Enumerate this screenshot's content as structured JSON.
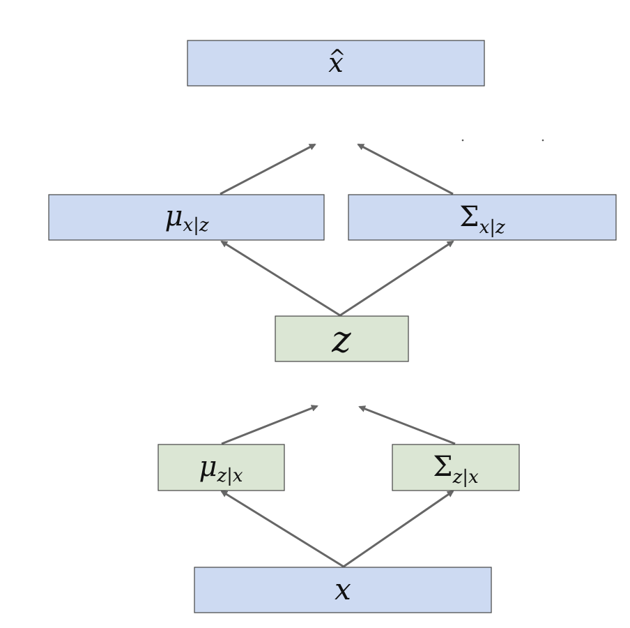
{
  "colors": {
    "blue_fill": "#cddaf2",
    "green_fill": "#dbe6d4",
    "edge": "#666666",
    "border": "#444444"
  },
  "nodes": {
    "x_hat": {
      "symbol": "x",
      "accent": "^"
    },
    "mu_x_given_z": {
      "symbol": "μ",
      "subscript": "x|z"
    },
    "sigma_x_given_z": {
      "symbol": "Σ",
      "subscript": "x|z"
    },
    "z": {
      "symbol": "z"
    },
    "mu_z_given_x": {
      "symbol": "μ",
      "subscript": "z|x"
    },
    "sigma_z_given_x": {
      "symbol": "Σ",
      "subscript": "z|x"
    },
    "x": {
      "symbol": "x"
    }
  },
  "edges": [
    {
      "from": "x",
      "to": "mu_z_given_x"
    },
    {
      "from": "x",
      "to": "sigma_z_given_x"
    },
    {
      "from": "mu_z_given_x",
      "to": "z"
    },
    {
      "from": "sigma_z_given_x",
      "to": "z"
    },
    {
      "from": "z",
      "to": "mu_x_given_z"
    },
    {
      "from": "z",
      "to": "sigma_x_given_z"
    },
    {
      "from": "mu_x_given_z",
      "to": "x_hat"
    },
    {
      "from": "sigma_x_given_z",
      "to": "x_hat"
    }
  ]
}
